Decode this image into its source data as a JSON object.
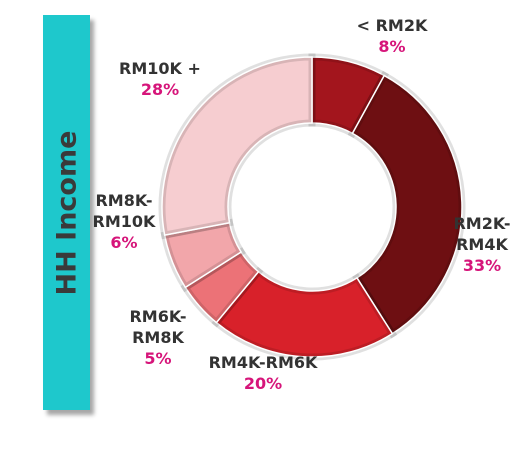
{
  "chart_data": {
    "type": "donut",
    "title": "HH Income",
    "categories": [
      "< RM2K",
      "RM2K-RM4K",
      "RM4K-RM6K",
      "RM6K-RM8K",
      "RM8K-RM10K",
      "RM10K +"
    ],
    "values": [
      8,
      33,
      20,
      5,
      6,
      28
    ],
    "value_labels": [
      "8%",
      "33%",
      "20%",
      "5%",
      "6%",
      "28%"
    ],
    "colors": [
      "#a3151d",
      "#6e0f12",
      "#d8212a",
      "#ec7277",
      "#f2a6aa",
      "#f6cdd0"
    ]
  }
}
